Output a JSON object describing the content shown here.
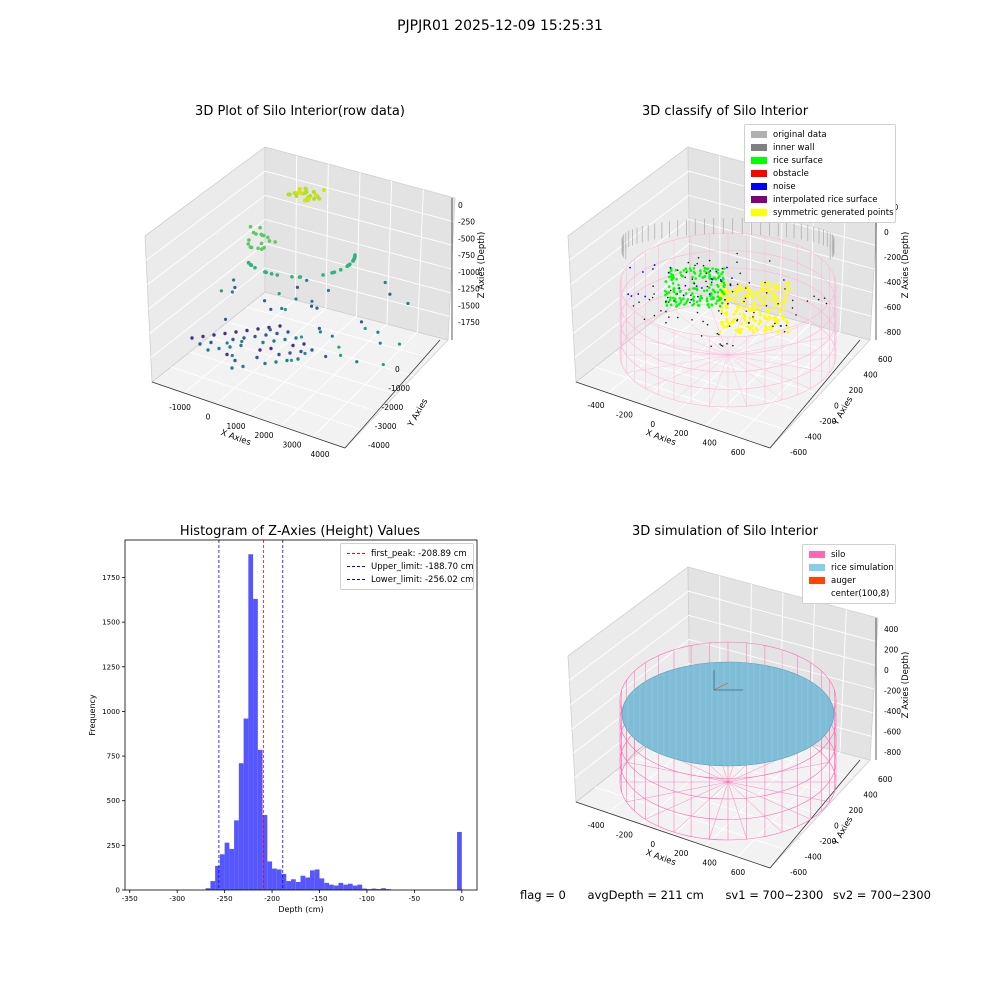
{
  "suptitle": "PJPJR01 2025-12-09 15:25:31",
  "chart_data": [
    {
      "type": "scatter",
      "title": "3D Plot of Silo Interior(row data)",
      "xlabel": "X Axies",
      "ylabel": "Y Axies",
      "zlabel": "Z Axies (Depth)",
      "x_ticks": [
        "-1000",
        "0",
        "1000",
        "2000",
        "3000",
        "4000"
      ],
      "y_ticks": [
        "0",
        "-1000",
        "-2000",
        "-3000",
        "-4000"
      ],
      "z_ticks": [
        "0",
        "-250",
        "-500",
        "-750",
        "-1000",
        "-1250",
        "-1500",
        "-1750"
      ],
      "colormap": "viridis"
    },
    {
      "type": "scatter",
      "title": "3D classify of Silo Interior",
      "xlabel": "X Axies",
      "ylabel": "Y Axies",
      "zlabel": "Z Axies (Depth)",
      "x_ticks": [
        "-400",
        "-200",
        "0",
        "200",
        "400",
        "600"
      ],
      "y_ticks": [
        "600",
        "400",
        "200",
        "0",
        "-200",
        "-400",
        "-600"
      ],
      "z_ticks": [
        "200",
        "0",
        "-200",
        "-400",
        "-600",
        "-800"
      ],
      "legend": [
        {
          "label": "original data",
          "color": "#b0b0b0"
        },
        {
          "label": "inner wall",
          "color": "#808080"
        },
        {
          "label": "rice surface",
          "color": "#00ff00"
        },
        {
          "label": "obstacle",
          "color": "#ff0000"
        },
        {
          "label": "noise",
          "color": "#0000ff"
        },
        {
          "label": "interpolated rice surface",
          "color": "#800080"
        },
        {
          "label": "symmetric generated points",
          "color": "#ffff00"
        }
      ]
    },
    {
      "type": "bar",
      "title": "Histogram of Z-Axies (Height) Values",
      "xlabel": "Depth (cm)",
      "ylabel": "Frequency",
      "xlim": [
        -355,
        16
      ],
      "ylim": [
        0,
        1960
      ],
      "x_ticks": [
        -350,
        -300,
        -250,
        -200,
        -150,
        -100,
        -50,
        0
      ],
      "y_ticks": [
        0,
        250,
        500,
        750,
        1000,
        1250,
        1500,
        1750
      ],
      "bar_color": "#4d4dff",
      "bin_width": 5,
      "bins": [
        [
          -270,
          10
        ],
        [
          -265,
          50
        ],
        [
          -260,
          135
        ],
        [
          -255,
          200
        ],
        [
          -250,
          265
        ],
        [
          -245,
          230
        ],
        [
          -240,
          390
        ],
        [
          -235,
          710
        ],
        [
          -230,
          960
        ],
        [
          -225,
          1880
        ],
        [
          -220,
          1630
        ],
        [
          -215,
          785
        ],
        [
          -210,
          420
        ],
        [
          -205,
          160
        ],
        [
          -200,
          120
        ],
        [
          -195,
          115
        ],
        [
          -190,
          90
        ],
        [
          -185,
          50
        ],
        [
          -180,
          60
        ],
        [
          -175,
          45
        ],
        [
          -170,
          80
        ],
        [
          -165,
          70
        ],
        [
          -160,
          110
        ],
        [
          -155,
          115
        ],
        [
          -150,
          65
        ],
        [
          -145,
          40
        ],
        [
          -140,
          30
        ],
        [
          -135,
          25
        ],
        [
          -130,
          40
        ],
        [
          -125,
          30
        ],
        [
          -120,
          35
        ],
        [
          -115,
          25
        ],
        [
          -110,
          30
        ],
        [
          -105,
          8
        ],
        [
          -100,
          5
        ],
        [
          -95,
          8
        ],
        [
          -90,
          5
        ],
        [
          -85,
          10
        ],
        [
          -80,
          5
        ],
        [
          -5,
          325
        ]
      ],
      "vlines": [
        {
          "label": "first_peak: -208.89 cm",
          "x": -208.89,
          "color": "#ff0000"
        },
        {
          "label": "Upper_limit: -188.70 cm",
          "x": -188.7,
          "color": "#0000ff"
        },
        {
          "label": "Lower_limit: -256.02 cm",
          "x": -256.02,
          "color": "#0000ff"
        }
      ]
    },
    {
      "type": "surface",
      "title": "3D simulation of Silo Interior",
      "xlabel": "X Axies",
      "ylabel": "Y Axies",
      "zlabel": "Z Axies (Depth)",
      "x_ticks": [
        "-400",
        "-200",
        "0",
        "200",
        "400",
        "600"
      ],
      "y_ticks": [
        "600",
        "400",
        "200",
        "0",
        "-200",
        "-400",
        "-600"
      ],
      "z_ticks": [
        "400",
        "200",
        "0",
        "-200",
        "-400",
        "-600",
        "-800"
      ],
      "legend": [
        {
          "label": "silo",
          "color": "#ff69b4"
        },
        {
          "label": "rice simulation",
          "color": "#87ceeb"
        },
        {
          "label": "auger",
          "color": "#ff4500"
        },
        {
          "label": "center(100,8)",
          "color": ""
        }
      ]
    }
  ],
  "status": {
    "flag": "flag = 0",
    "avg_depth": "avgDepth = 211 cm",
    "sv1": "sv1 = 700~2300",
    "sv2": "sv2 = 700~2300"
  }
}
